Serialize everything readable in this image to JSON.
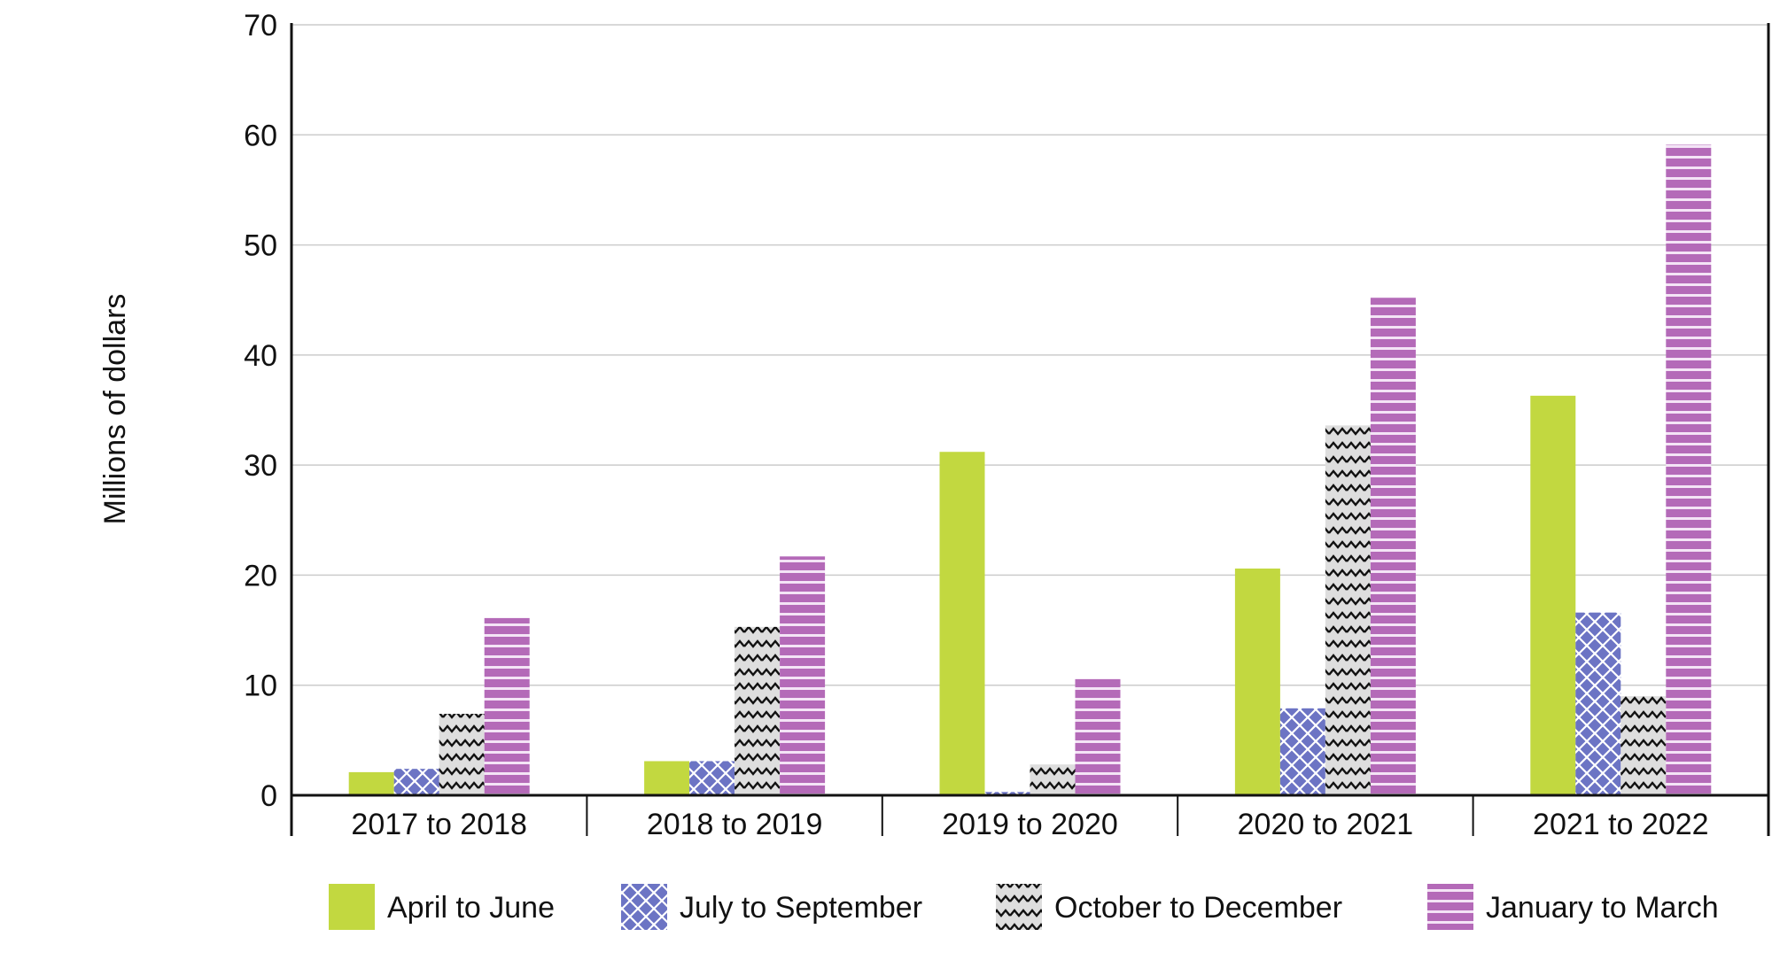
{
  "colors": {
    "april_to_june": "#c2d840",
    "july_to_september": "#6c74c4",
    "october_to_december": "#dedede",
    "january_to_march": "#b46ab8",
    "grid": "#cccccc",
    "axis": "#111111"
  },
  "chart_data": {
    "type": "bar",
    "title": "",
    "xlabel": "",
    "ylabel": "Millions of dollars",
    "ylim": [
      0,
      70
    ],
    "yticks": [
      0,
      10,
      20,
      30,
      40,
      50,
      60,
      70
    ],
    "grid": true,
    "legend_position": "bottom",
    "categories": [
      "2017 to 2018",
      "2018 to 2019",
      "2019 to 2020",
      "2020 to 2021",
      "2021 to 2022"
    ],
    "series": [
      {
        "name": "April to June",
        "pattern": "solid",
        "values": [
          2.1,
          3.1,
          31.2,
          20.6,
          36.3
        ]
      },
      {
        "name": "July to September",
        "pattern": "crosshatch",
        "values": [
          2.4,
          3.1,
          0.3,
          7.9,
          16.6
        ]
      },
      {
        "name": "October to December",
        "pattern": "zigzag",
        "values": [
          7.4,
          15.3,
          2.8,
          33.6,
          9.0
        ]
      },
      {
        "name": "January to March",
        "pattern": "horizontal-stripes",
        "values": [
          16.1,
          21.7,
          10.6,
          45.2,
          59.1
        ]
      }
    ]
  }
}
